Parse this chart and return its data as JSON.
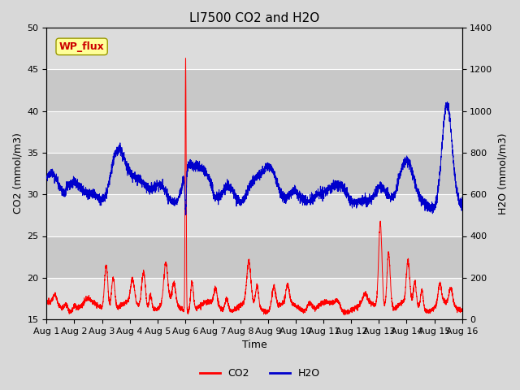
{
  "title": "LI7500 CO2 and H2O",
  "xlabel": "Time",
  "ylabel_left": "CO2 (mmol/m3)",
  "ylabel_right": "H2O (mmol/m3)",
  "ylim_left": [
    15,
    50
  ],
  "ylim_right": [
    0,
    1400
  ],
  "xtick_labels": [
    "Aug 1",
    "Aug 2",
    "Aug 3",
    "Aug 4",
    "Aug 5",
    "Aug 6",
    "Aug 7",
    "Aug 8",
    "Aug 9",
    "Aug 10",
    "Aug 11",
    "Aug 12",
    "Aug 13",
    "Aug 14",
    "Aug 15",
    "Aug 16"
  ],
  "yticks_left": [
    15,
    20,
    25,
    30,
    35,
    40,
    45,
    50
  ],
  "yticks_right": [
    0,
    200,
    400,
    600,
    800,
    1000,
    1200,
    1400
  ],
  "co2_color": "#FF0000",
  "h2o_color": "#0000CC",
  "figure_bg": "#D8D8D8",
  "plot_bg": "#E8E8E8",
  "band_light": "#DCDCDC",
  "band_dark": "#C8C8C8",
  "annotation_text": "WP_flux",
  "annotation_fg": "#CC0000",
  "annotation_bg": "#FFFF99",
  "annotation_border": "#999900",
  "title_fontsize": 11,
  "axis_fontsize": 9,
  "tick_fontsize": 8,
  "legend_fontsize": 9
}
